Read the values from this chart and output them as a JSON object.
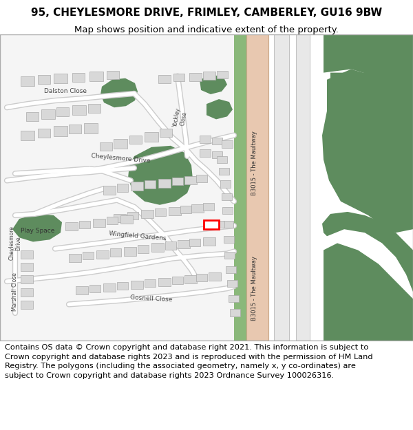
{
  "title_line1": "95, CHEYLESMORE DRIVE, FRIMLEY, CAMBERLEY, GU16 9BW",
  "title_line2": "Map shows position and indicative extent of the property.",
  "footer_text": "Contains OS data © Crown copyright and database right 2021. This information is subject to Crown copyright and database rights 2023 and is reproduced with the permission of HM Land Registry. The polygons (including the associated geometry, namely x, y co-ordinates) are subject to Crown copyright and database rights 2023 Ordnance Survey 100026316.",
  "map_bg": "#f2f2f2",
  "green_color": "#5e8c5e",
  "green_median": "#7aaa7a",
  "building_color": "#d8d8d8",
  "building_edge": "#aaaaaa",
  "road_fill": "#e8c8b0",
  "road_edge": "#c8a888",
  "white_road": "#ffffff",
  "road_outline": "#cccccc",
  "title_fontsize": 11,
  "subtitle_fontsize": 9.5,
  "footer_fontsize": 8.2,
  "label_color": "#444444",
  "title_bold": true,
  "map_border": "#aaaaaa",
  "highlight": "#ff0000"
}
